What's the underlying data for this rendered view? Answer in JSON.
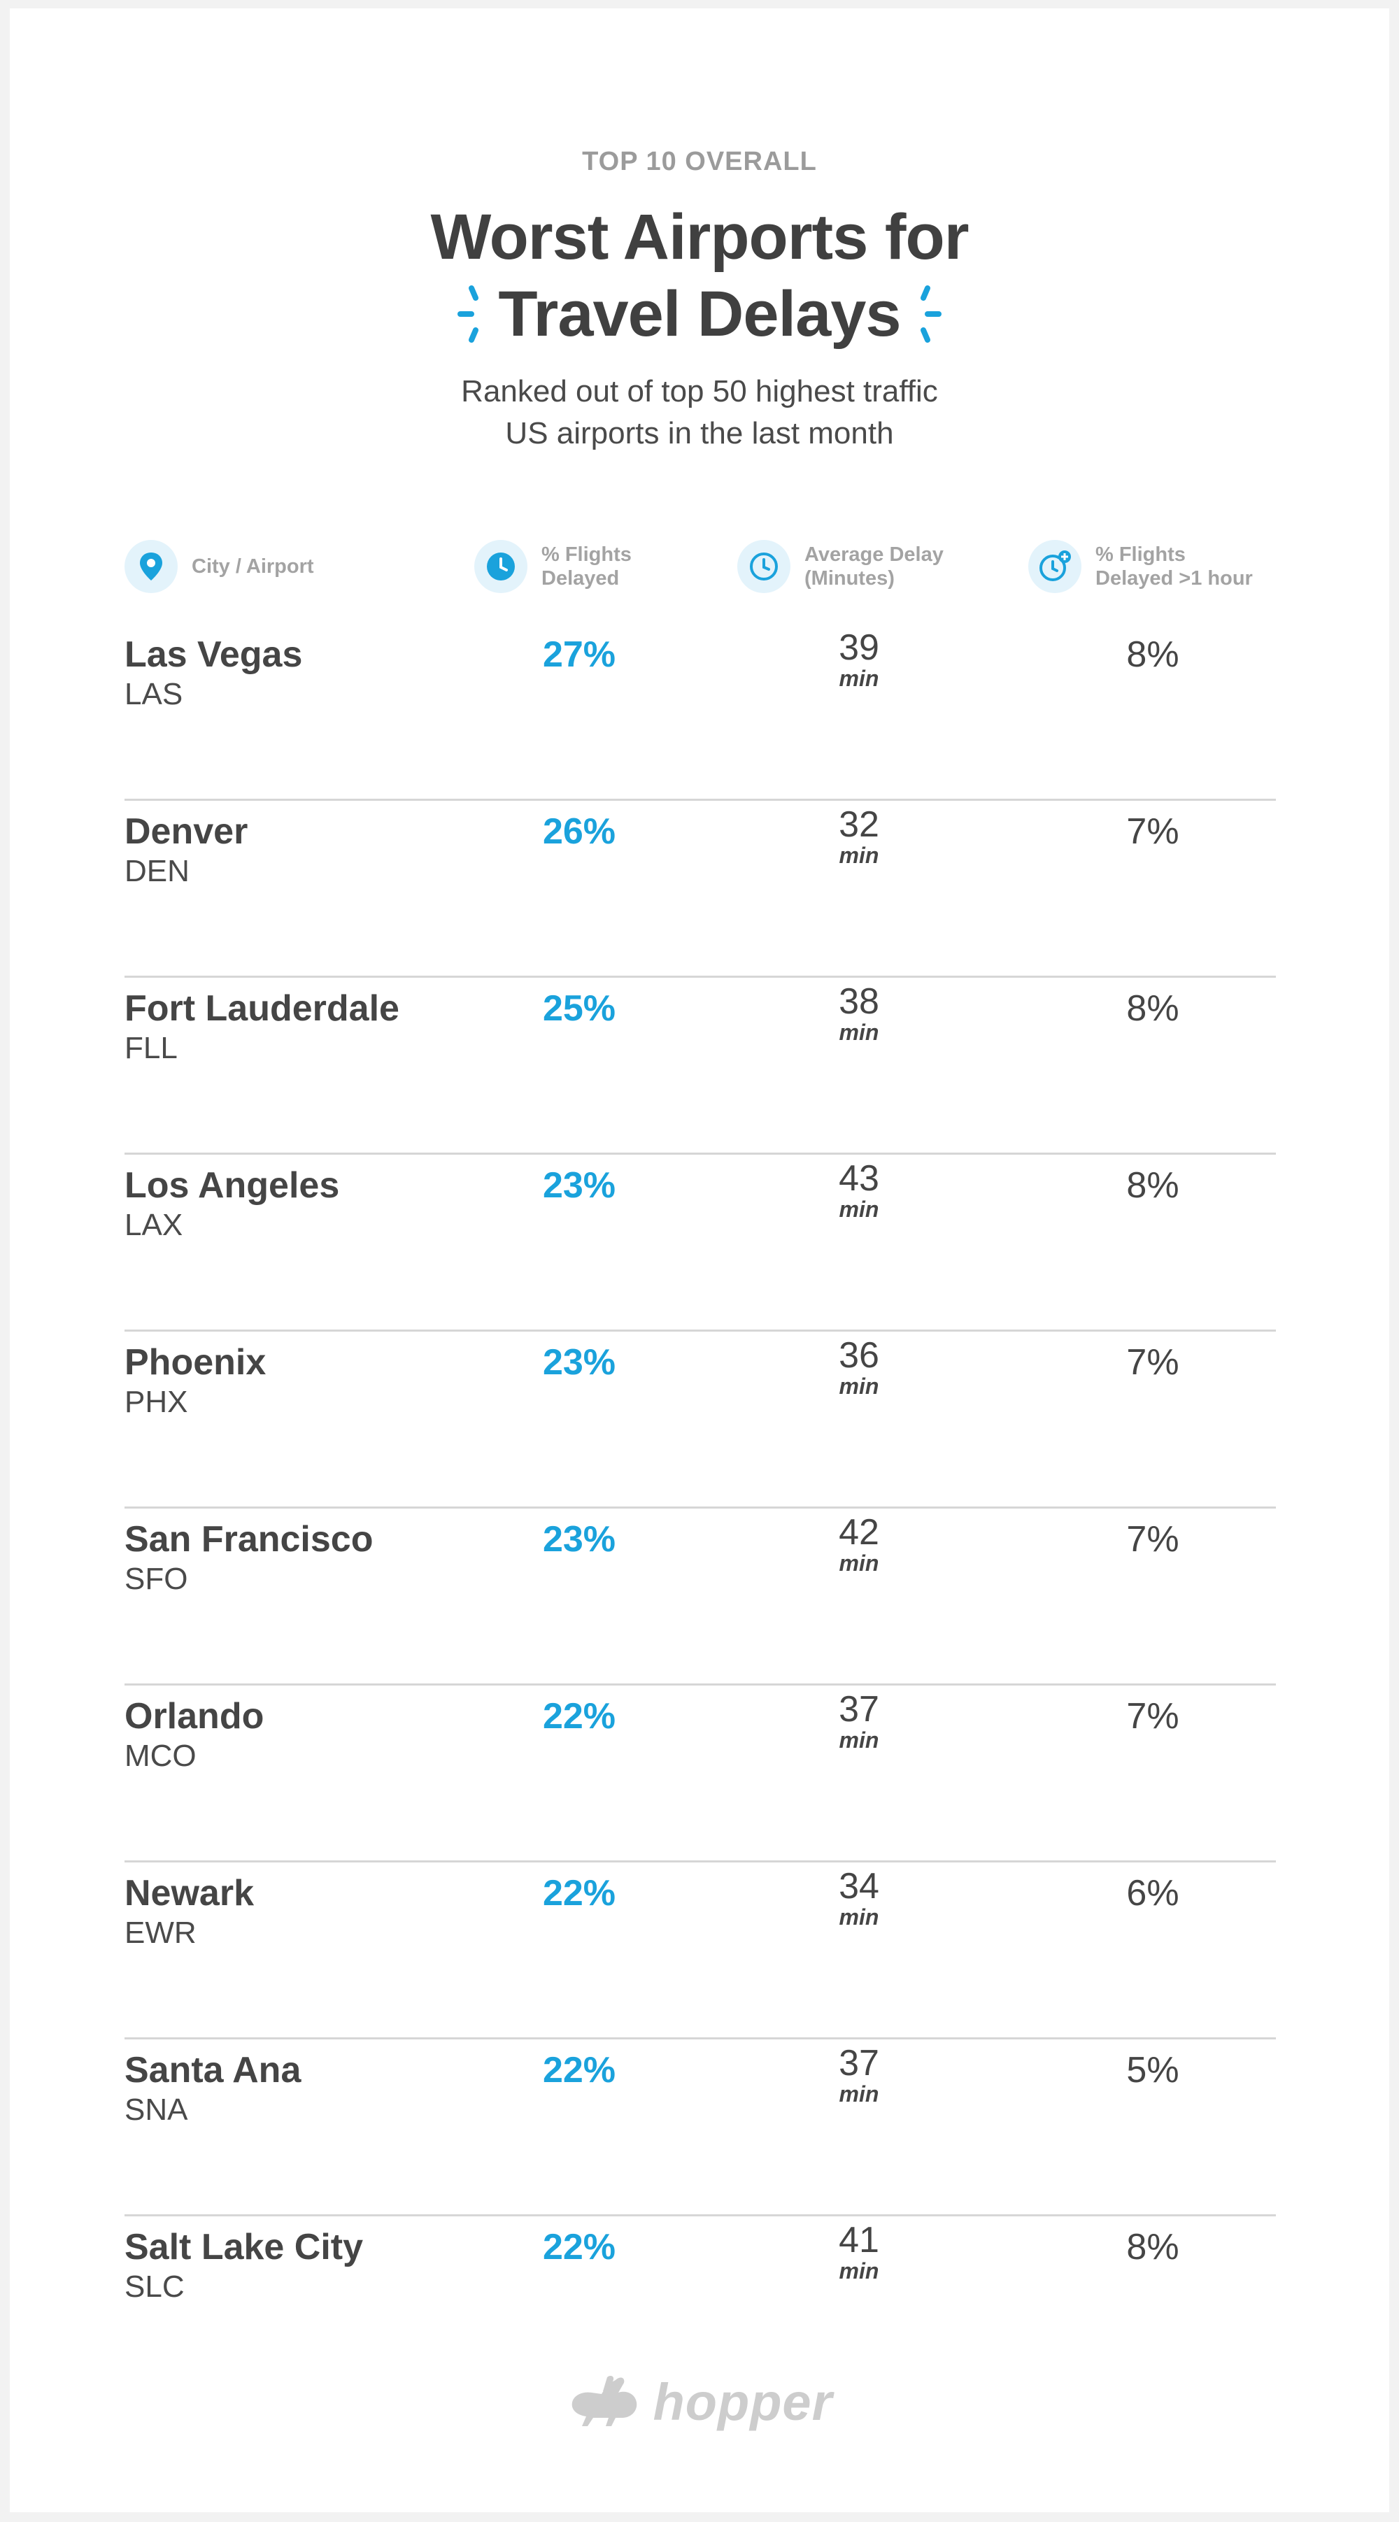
{
  "header": {
    "eyebrow": "TOP 10 OVERALL",
    "title_line1": "Worst Airports for",
    "title_line2": "Travel Delays",
    "subtitle_line1": "Ranked out of top 50 highest traffic",
    "subtitle_line2": "US airports in the last month"
  },
  "columns": {
    "city": {
      "label": "City / Airport",
      "icon": "location-pin-icon"
    },
    "pct": {
      "label_line1": "% Flights",
      "label_line2": "Delayed",
      "icon": "clock-filled-icon"
    },
    "avg": {
      "label_line1": "Average Delay",
      "label_line2": "(Minutes)",
      "icon": "clock-outline-icon"
    },
    "hour": {
      "label_line1": "% Flights",
      "label_line2": "Delayed >1 hour",
      "icon": "clock-plus-icon"
    }
  },
  "unit": "min",
  "rows": [
    {
      "city": "Las Vegas",
      "code": "LAS",
      "pct": "27%",
      "avg": "39",
      "hour": "8%"
    },
    {
      "city": "Denver",
      "code": "DEN",
      "pct": "26%",
      "avg": "32",
      "hour": "7%"
    },
    {
      "city": "Fort Lauderdale",
      "code": "FLL",
      "pct": "25%",
      "avg": "38",
      "hour": "8%"
    },
    {
      "city": "Los Angeles",
      "code": "LAX",
      "pct": "23%",
      "avg": "43",
      "hour": "8%"
    },
    {
      "city": "Phoenix",
      "code": "PHX",
      "pct": "23%",
      "avg": "36",
      "hour": "7%"
    },
    {
      "city": "San Francisco",
      "code": "SFO",
      "pct": "23%",
      "avg": "42",
      "hour": "7%"
    },
    {
      "city": "Orlando",
      "code": "MCO",
      "pct": "22%",
      "avg": "37",
      "hour": "7%"
    },
    {
      "city": "Newark",
      "code": "EWR",
      "pct": "22%",
      "avg": "34",
      "hour": "6%"
    },
    {
      "city": "Santa Ana",
      "code": "SNA",
      "pct": "22%",
      "avg": "37",
      "hour": "5%"
    },
    {
      "city": "Salt Lake City",
      "code": "SLC",
      "pct": "22%",
      "avg": "41",
      "hour": "8%"
    }
  ],
  "footer": {
    "brand": "hopper",
    "icon": "rabbit-logo-icon"
  },
  "colors": {
    "accent": "#1aa2dc",
    "text": "#454545",
    "muted": "#9b9b9b",
    "divider": "#d6d6d6"
  }
}
